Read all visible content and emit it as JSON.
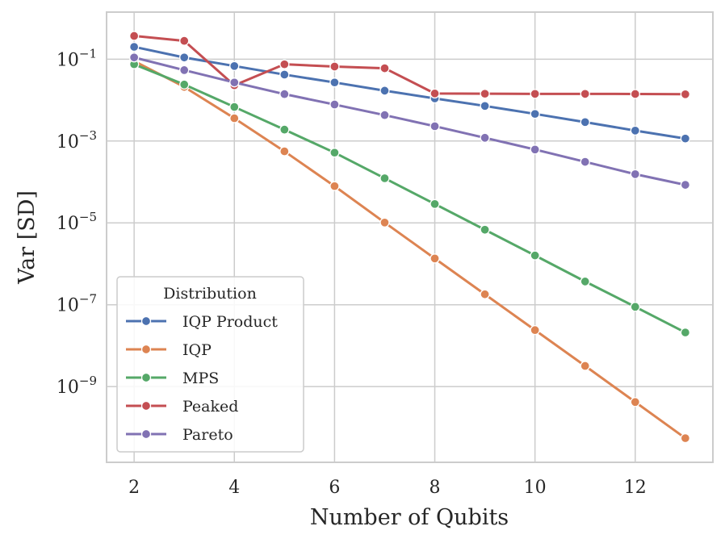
{
  "chart_data": {
    "type": "line",
    "title": "",
    "xlabel": "Number of Qubits",
    "ylabel": "Var [SD]",
    "yscale": "log",
    "xlim": [
      1.45,
      13.55
    ],
    "ylim_log10": [
      -10.85,
      0.15
    ],
    "x_ticks": [
      2,
      4,
      6,
      8,
      10,
      12
    ],
    "x_tick_labels": [
      "2",
      "4",
      "6",
      "8",
      "10",
      "12"
    ],
    "y_ticks_log10": [
      -1,
      -3,
      -5,
      -7,
      -9
    ],
    "y_tick_labels": [
      {
        "base": "10",
        "exp": "−1"
      },
      {
        "base": "10",
        "exp": "−3"
      },
      {
        "base": "10",
        "exp": "−5"
      },
      {
        "base": "10",
        "exp": "−7"
      },
      {
        "base": "10",
        "exp": "−9"
      }
    ],
    "grid": true,
    "legend": {
      "title": "Distribution",
      "location": "lower-left"
    },
    "x": [
      2,
      3,
      4,
      5,
      6,
      7,
      8,
      9,
      10,
      11,
      12,
      13
    ],
    "series": [
      {
        "name": "IQP Product",
        "color": "#4c72b0",
        "values": [
          0.2,
          0.11,
          0.068,
          0.042,
          0.027,
          0.017,
          0.011,
          0.0072,
          0.0046,
          0.0029,
          0.0018,
          0.00115
        ]
      },
      {
        "name": "IQP",
        "color": "#dd8452",
        "values": [
          0.09,
          0.021,
          0.0036,
          0.00056,
          7.9e-05,
          1.02e-05,
          1.35e-06,
          1.8e-07,
          2.4e-08,
          3.2e-09,
          4.2e-10,
          5.5e-11
        ]
      },
      {
        "name": "MPS",
        "color": "#55a868",
        "values": [
          0.075,
          0.024,
          0.0068,
          0.0019,
          0.00052,
          0.000123,
          2.9e-05,
          6.8e-06,
          1.6e-06,
          3.7e-07,
          8.9e-08,
          2.1e-08
        ]
      },
      {
        "name": "Peaked",
        "color": "#c44e52",
        "values": [
          0.37,
          0.28,
          0.023,
          0.075,
          0.066,
          0.06,
          0.0145,
          0.0143,
          0.0142,
          0.0142,
          0.0141,
          0.0139
        ]
      },
      {
        "name": "Pareto",
        "color": "#8172b3",
        "values": [
          0.11,
          0.054,
          0.027,
          0.014,
          0.0078,
          0.0043,
          0.0023,
          0.0012,
          0.00062,
          0.00031,
          0.000155,
          8.5e-05
        ]
      }
    ]
  }
}
